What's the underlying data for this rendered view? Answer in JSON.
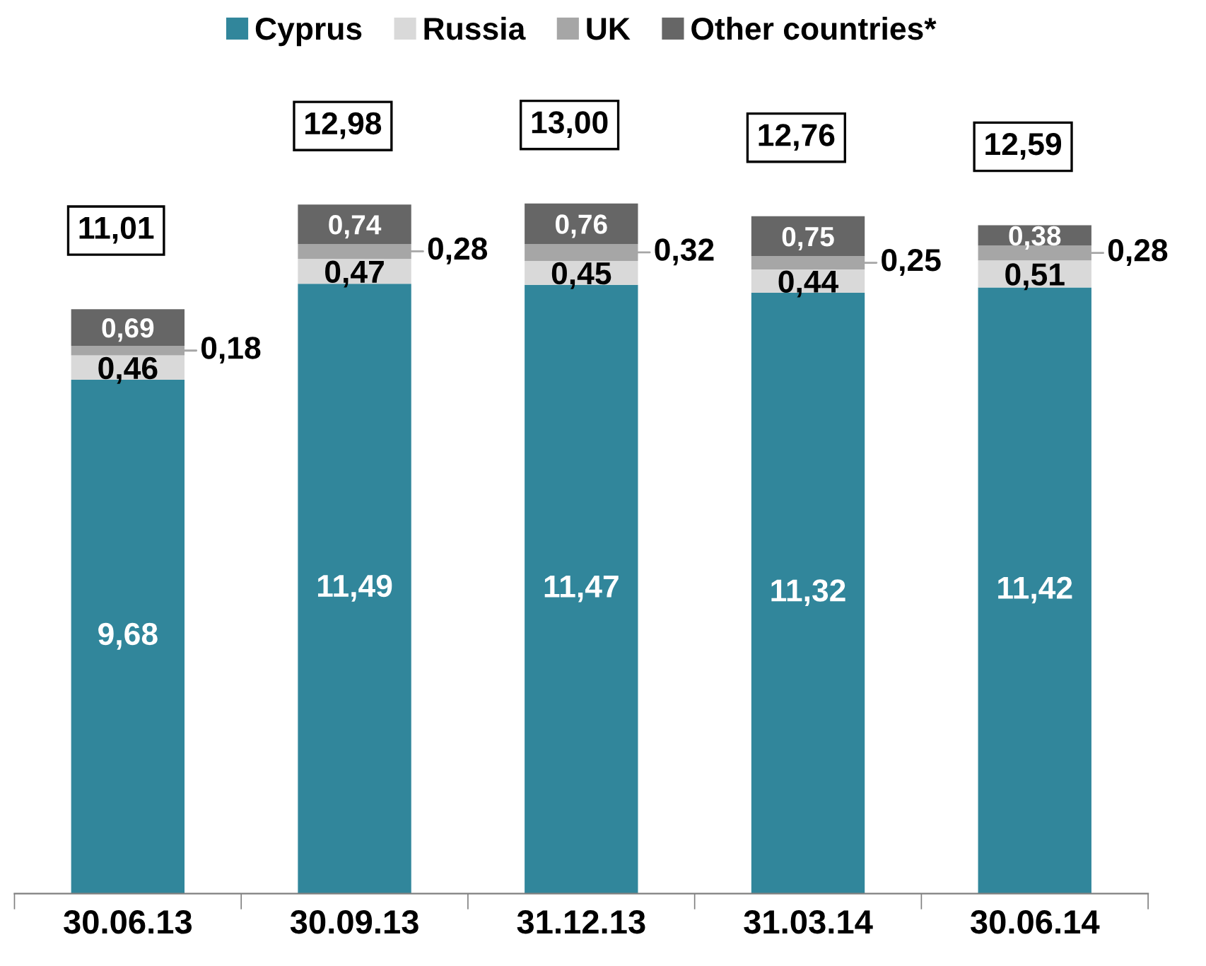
{
  "chart_data": {
    "type": "bar",
    "stacked": true,
    "categories": [
      "30.06.13",
      "30.09.13",
      "31.12.13",
      "31.03.14",
      "30.06.14"
    ],
    "series": [
      {
        "name": "Cyprus",
        "color": "#31869b",
        "values": [
          9.68,
          11.49,
          11.47,
          11.32,
          11.42
        ],
        "value_labels": [
          "9,68",
          "11,49",
          "11,47",
          "11,32",
          "11,42"
        ]
      },
      {
        "name": "Russia",
        "color": "#d9d9d9",
        "values": [
          0.46,
          0.47,
          0.45,
          0.44,
          0.51
        ],
        "value_labels": [
          "0,46",
          "0,47",
          "0,45",
          "0,44",
          "0,51"
        ]
      },
      {
        "name": "UK",
        "color": "#a6a6a6",
        "values": [
          0.18,
          0.28,
          0.32,
          0.25,
          0.28
        ],
        "value_labels": [
          "0,18",
          "0,28",
          "0,32",
          "0,25",
          "0,28"
        ]
      },
      {
        "name": "Other countries*",
        "color": "#666666",
        "values": [
          0.69,
          0.74,
          0.76,
          0.75,
          0.38
        ],
        "value_labels": [
          "0,69",
          "0,74",
          "0,76",
          "0,75",
          "0,38"
        ]
      }
    ],
    "totals": [
      "11,01",
      "12,98",
      "13,00",
      "12,76",
      "12,59"
    ],
    "legend": "top",
    "grid": false
  }
}
